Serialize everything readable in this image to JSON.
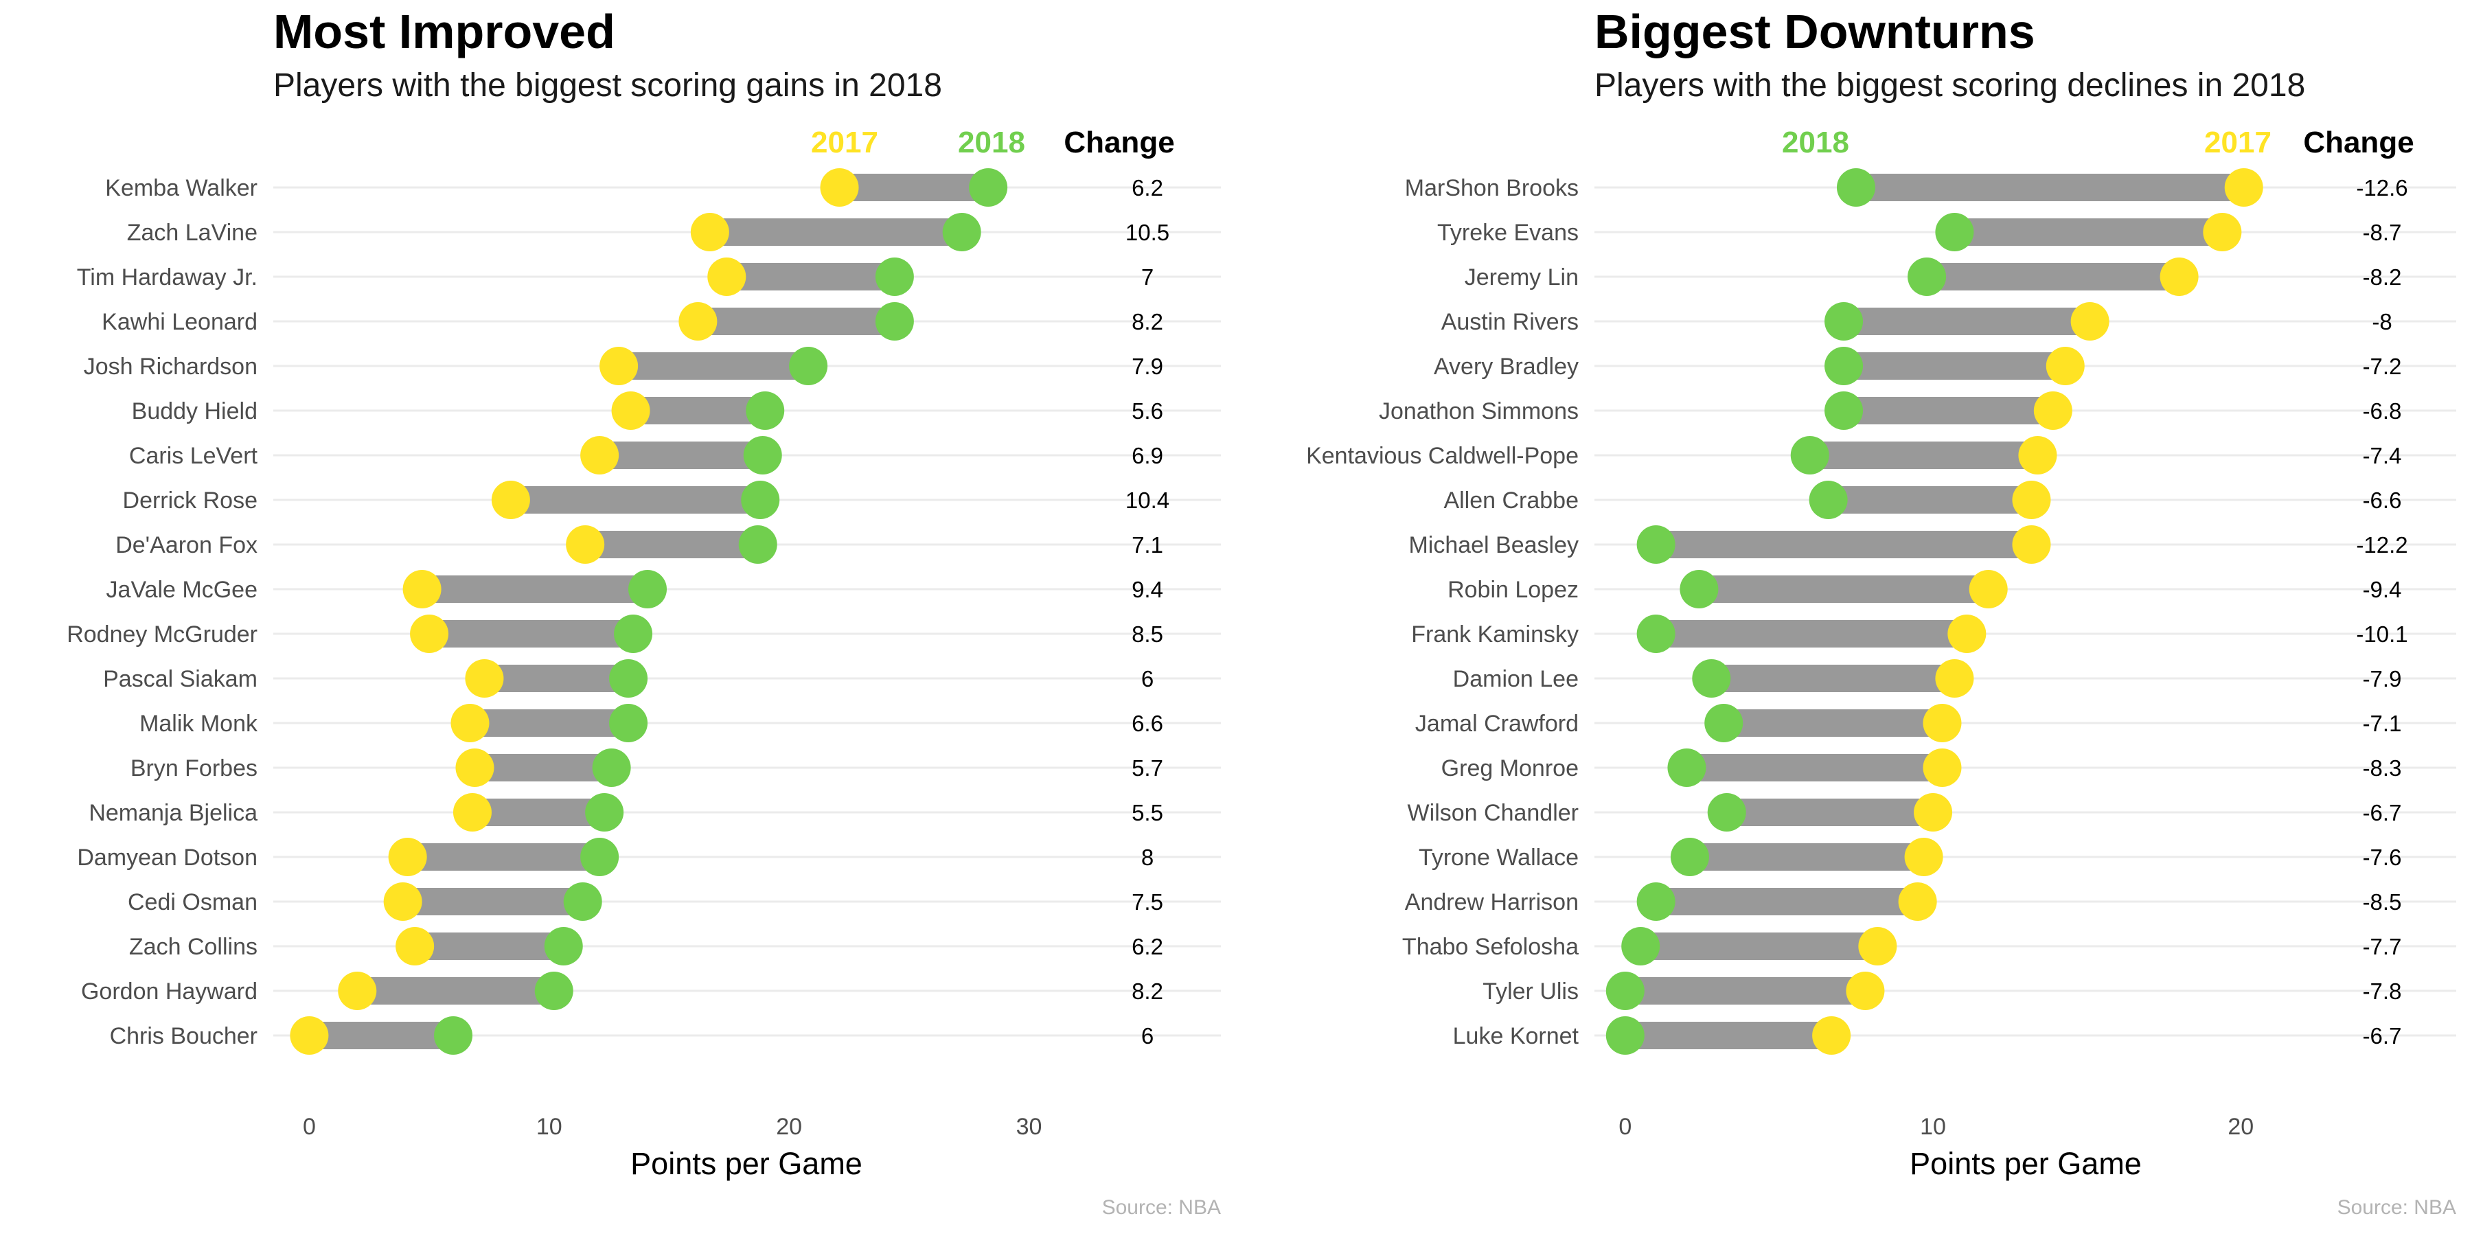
{
  "colors": {
    "y2017": "#FFE324",
    "y2018": "#71CF4E",
    "bar": "#999999",
    "grid": "#ebebeb"
  },
  "chart_data": [
    {
      "type": "dumbbell",
      "title": "Most Improved",
      "subtitle": "Players with the biggest scoring gains in 2018",
      "xlabel": "Points per Game",
      "xlim": [
        -1.5,
        38
      ],
      "xticks": [
        0,
        10,
        20,
        30
      ],
      "legend": {
        "left_label": "2017",
        "right_label": "2018",
        "change_label": "Change"
      },
      "caption": "Source: NBA",
      "players": [
        {
          "name": "Kemba Walker",
          "y2017": 22.1,
          "y2018": 28.3,
          "change": "6.2"
        },
        {
          "name": "Zach LaVine",
          "y2017": 16.7,
          "y2018": 27.2,
          "change": "10.5"
        },
        {
          "name": "Tim Hardaway Jr.",
          "y2017": 17.4,
          "y2018": 24.4,
          "change": "7"
        },
        {
          "name": "Kawhi Leonard",
          "y2017": 16.2,
          "y2018": 24.4,
          "change": "8.2"
        },
        {
          "name": "Josh Richardson",
          "y2017": 12.9,
          "y2018": 20.8,
          "change": "7.9"
        },
        {
          "name": "Buddy Hield",
          "y2017": 13.4,
          "y2018": 19.0,
          "change": "5.6"
        },
        {
          "name": "Caris LeVert",
          "y2017": 12.1,
          "y2018": 18.9,
          "change": "6.9"
        },
        {
          "name": "Derrick Rose",
          "y2017": 8.4,
          "y2018": 18.8,
          "change": "10.4"
        },
        {
          "name": "De'Aaron Fox",
          "y2017": 11.5,
          "y2018": 18.7,
          "change": "7.1"
        },
        {
          "name": "JaVale McGee",
          "y2017": 4.7,
          "y2018": 14.1,
          "change": "9.4"
        },
        {
          "name": "Rodney McGruder",
          "y2017": 5.0,
          "y2018": 13.5,
          "change": "8.5"
        },
        {
          "name": "Pascal Siakam",
          "y2017": 7.3,
          "y2018": 13.3,
          "change": "6"
        },
        {
          "name": "Malik Monk",
          "y2017": 6.7,
          "y2018": 13.3,
          "change": "6.6"
        },
        {
          "name": "Bryn Forbes",
          "y2017": 6.9,
          "y2018": 12.6,
          "change": "5.7"
        },
        {
          "name": "Nemanja Bjelica",
          "y2017": 6.8,
          "y2018": 12.3,
          "change": "5.5"
        },
        {
          "name": "Damyean Dotson",
          "y2017": 4.1,
          "y2018": 12.1,
          "change": "8"
        },
        {
          "name": "Cedi Osman",
          "y2017": 3.9,
          "y2018": 11.4,
          "change": "7.5"
        },
        {
          "name": "Zach Collins",
          "y2017": 4.4,
          "y2018": 10.6,
          "change": "6.2"
        },
        {
          "name": "Gordon Hayward",
          "y2017": 2.0,
          "y2018": 10.2,
          "change": "8.2"
        },
        {
          "name": "Chris Boucher",
          "y2017": 0.0,
          "y2018": 6.0,
          "change": "6"
        }
      ]
    },
    {
      "type": "dumbbell",
      "title": "Biggest Downturns",
      "subtitle": "Players with the biggest scoring declines in 2018",
      "xlabel": "Points per Game",
      "xlim": [
        -1,
        27
      ],
      "xticks": [
        0,
        10,
        20
      ],
      "legend": {
        "left_label": "2018",
        "right_label": "2017",
        "change_label": "Change"
      },
      "caption": "Source: NBA",
      "players": [
        {
          "name": "MarShon Brooks",
          "y2017": 20.1,
          "y2018": 7.5,
          "change": "-12.6"
        },
        {
          "name": "Tyreke Evans",
          "y2017": 19.4,
          "y2018": 10.7,
          "change": "-8.7"
        },
        {
          "name": "Jeremy Lin",
          "y2017": 18.0,
          "y2018": 9.8,
          "change": "-8.2"
        },
        {
          "name": "Austin Rivers",
          "y2017": 15.1,
          "y2018": 7.1,
          "change": "-8"
        },
        {
          "name": "Avery Bradley",
          "y2017": 14.3,
          "y2018": 7.1,
          "change": "-7.2"
        },
        {
          "name": "Jonathon Simmons",
          "y2017": 13.9,
          "y2018": 7.1,
          "change": "-6.8"
        },
        {
          "name": "Kentavious Caldwell-Pope",
          "y2017": 13.4,
          "y2018": 6.0,
          "change": "-7.4"
        },
        {
          "name": "Allen Crabbe",
          "y2017": 13.2,
          "y2018": 6.6,
          "change": "-6.6"
        },
        {
          "name": "Michael Beasley",
          "y2017": 13.2,
          "y2018": 1.0,
          "change": "-12.2"
        },
        {
          "name": "Robin Lopez",
          "y2017": 11.8,
          "y2018": 2.4,
          "change": "-9.4"
        },
        {
          "name": "Frank Kaminsky",
          "y2017": 11.1,
          "y2018": 1.0,
          "change": "-10.1"
        },
        {
          "name": "Damion Lee",
          "y2017": 10.7,
          "y2018": 2.8,
          "change": "-7.9"
        },
        {
          "name": "Jamal Crawford",
          "y2017": 10.3,
          "y2018": 3.2,
          "change": "-7.1"
        },
        {
          "name": "Greg Monroe",
          "y2017": 10.3,
          "y2018": 2.0,
          "change": "-8.3"
        },
        {
          "name": "Wilson Chandler",
          "y2017": 10.0,
          "y2018": 3.3,
          "change": "-6.7"
        },
        {
          "name": "Tyrone Wallace",
          "y2017": 9.7,
          "y2018": 2.1,
          "change": "-7.6"
        },
        {
          "name": "Andrew Harrison",
          "y2017": 9.5,
          "y2018": 1.0,
          "change": "-8.5"
        },
        {
          "name": "Thabo Sefolosha",
          "y2017": 8.2,
          "y2018": 0.5,
          "change": "-7.7"
        },
        {
          "name": "Tyler Ulis",
          "y2017": 7.8,
          "y2018": 0.0,
          "change": "-7.8"
        },
        {
          "name": "Luke Kornet",
          "y2017": 6.7,
          "y2018": 0.0,
          "change": "-6.7"
        }
      ]
    }
  ]
}
